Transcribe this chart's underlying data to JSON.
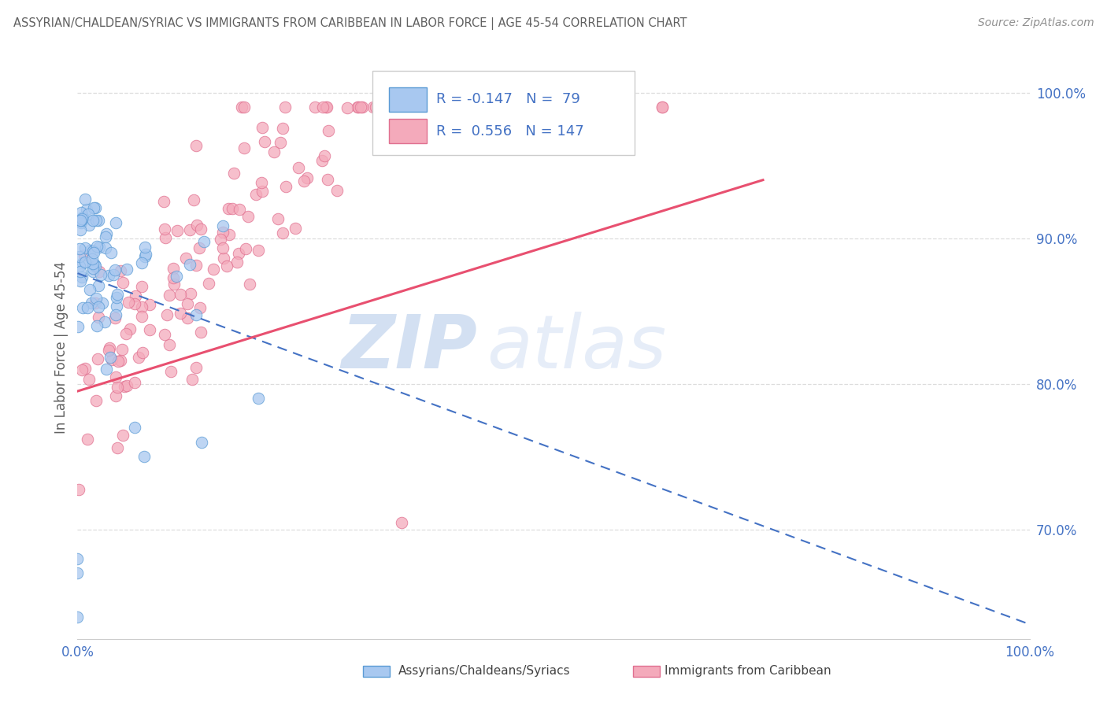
{
  "title": "ASSYRIAN/CHALDEAN/SYRIAC VS IMMIGRANTS FROM CARIBBEAN IN LABOR FORCE | AGE 45-54 CORRELATION CHART",
  "source": "Source: ZipAtlas.com",
  "ylabel": "In Labor Force | Age 45-54",
  "xlim": [
    0.0,
    1.0
  ],
  "ylim": [
    0.625,
    1.025
  ],
  "yticks": [
    0.7,
    0.8,
    0.9,
    1.0
  ],
  "ytick_labels": [
    "70.0%",
    "80.0%",
    "90.0%",
    "100.0%"
  ],
  "xticks": [
    0.0,
    1.0
  ],
  "xtick_labels": [
    "0.0%",
    "100.0%"
  ],
  "color_blue_fill": "#A8C8F0",
  "color_blue_edge": "#5B9BD5",
  "color_pink_fill": "#F4AABB",
  "color_pink_edge": "#E07090",
  "color_blue_line": "#4472C4",
  "color_pink_line": "#E85070",
  "background_color": "#FFFFFF",
  "watermark_zip": "ZIP",
  "watermark_atlas": "atlas",
  "grid_color": "#DDDDDD",
  "tick_color": "#4472C4",
  "title_color": "#606060",
  "source_color": "#909090",
  "ylabel_color": "#606060"
}
